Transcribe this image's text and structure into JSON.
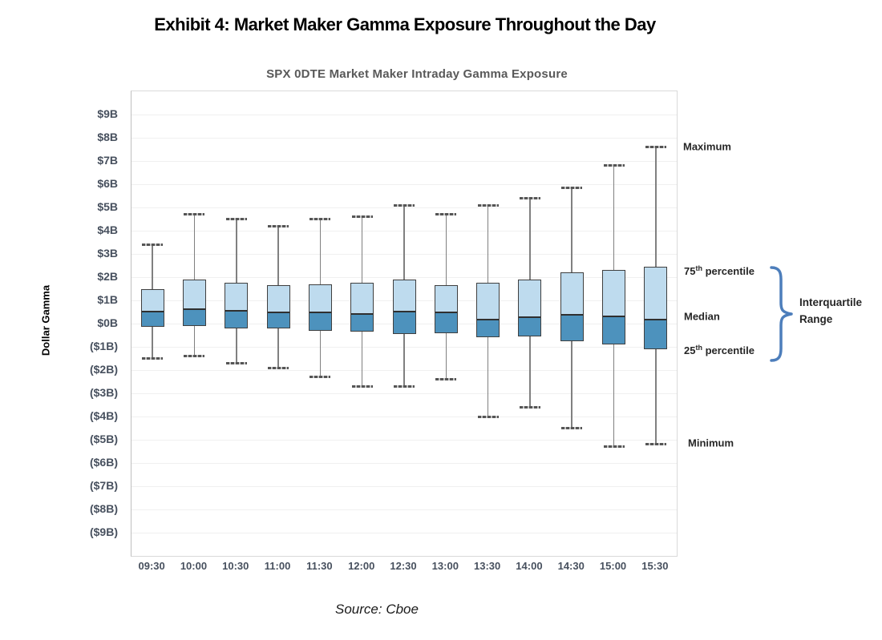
{
  "page_title": "Exhibit 4: Market Maker Gamma Exposure Throughout the Day",
  "source_note": "Source: Cboe",
  "annotations": {
    "maximum": "Maximum",
    "p75": {
      "num": "75",
      "sup": "th",
      "rest": " percentile"
    },
    "median": "Median",
    "p25": {
      "num": "25",
      "sup": "th",
      "rest": " percentile"
    },
    "minimum": "Minimum",
    "iqr": "Interquartile Range"
  },
  "colors": {
    "box_light": "#BEDBEE",
    "box_dark": "#4D92BD",
    "box_border": "#3F3F3F",
    "median_line": "#2F2F2F",
    "whisker": "#808080",
    "whisker_cap": "#555555",
    "gridline": "#F0F0F0",
    "axis_text": "#47505E",
    "bracket": "#4D7EBB"
  },
  "chart_data": {
    "type": "boxplot",
    "title": "SPX 0DTE Market Maker Intraday Gamma Exposure",
    "ylabel": "Dollar Gamma",
    "unit": "billions of dollars",
    "ylim": [
      -10,
      10
    ],
    "grid": true,
    "yticks": {
      "values": [
        9,
        8,
        7,
        6,
        5,
        4,
        3,
        2,
        1,
        0,
        -1,
        -2,
        -3,
        -4,
        -5,
        -6,
        -7,
        -8,
        -9
      ],
      "labels": [
        "$9B",
        "$8B",
        "$7B",
        "$6B",
        "$5B",
        "$4B",
        "$3B",
        "$2B",
        "$1B",
        "$0B",
        "($1B)",
        "($2B)",
        "($3B)",
        "($4B)",
        "($5B)",
        "($6B)",
        "($7B)",
        "($8B)",
        "($9B)"
      ]
    },
    "categories": [
      "09:30",
      "10:00",
      "10:30",
      "11:00",
      "11:30",
      "12:00",
      "12:30",
      "13:00",
      "13:30",
      "14:00",
      "14:30",
      "15:00",
      "15:30"
    ],
    "series": [
      {
        "time": "09:30",
        "min": -1.5,
        "q1": -0.15,
        "median": 0.55,
        "q3": 1.5,
        "max": 3.4
      },
      {
        "time": "10:00",
        "min": -1.4,
        "q1": -0.1,
        "median": 0.65,
        "q3": 1.9,
        "max": 4.7
      },
      {
        "time": "10:30",
        "min": -1.7,
        "q1": -0.2,
        "median": 0.6,
        "q3": 1.75,
        "max": 4.5
      },
      {
        "time": "11:00",
        "min": -1.9,
        "q1": -0.2,
        "median": 0.5,
        "q3": 1.65,
        "max": 4.2
      },
      {
        "time": "11:30",
        "min": -2.3,
        "q1": -0.3,
        "median": 0.5,
        "q3": 1.7,
        "max": 4.5
      },
      {
        "time": "12:00",
        "min": -2.7,
        "q1": -0.35,
        "median": 0.45,
        "q3": 1.75,
        "max": 4.6
      },
      {
        "time": "12:30",
        "min": -2.7,
        "q1": -0.45,
        "median": 0.55,
        "q3": 1.9,
        "max": 5.1
      },
      {
        "time": "13:00",
        "min": -2.4,
        "q1": -0.4,
        "median": 0.5,
        "q3": 1.65,
        "max": 4.7
      },
      {
        "time": "13:30",
        "min": -4.0,
        "q1": -0.6,
        "median": 0.2,
        "q3": 1.75,
        "max": 5.1
      },
      {
        "time": "14:00",
        "min": -3.6,
        "q1": -0.55,
        "median": 0.3,
        "q3": 1.9,
        "max": 5.4
      },
      {
        "time": "14:30",
        "min": -4.5,
        "q1": -0.75,
        "median": 0.4,
        "q3": 2.2,
        "max": 5.85
      },
      {
        "time": "15:00",
        "min": -5.3,
        "q1": -0.9,
        "median": 0.35,
        "q3": 2.3,
        "max": 6.8
      },
      {
        "time": "15:30",
        "min": -5.2,
        "q1": -1.1,
        "median": 0.2,
        "q3": 2.45,
        "max": 7.6
      }
    ],
    "legend_annotations": [
      "Maximum",
      "75th percentile",
      "Median",
      "25th percentile",
      "Minimum",
      "Interquartile Range"
    ]
  }
}
